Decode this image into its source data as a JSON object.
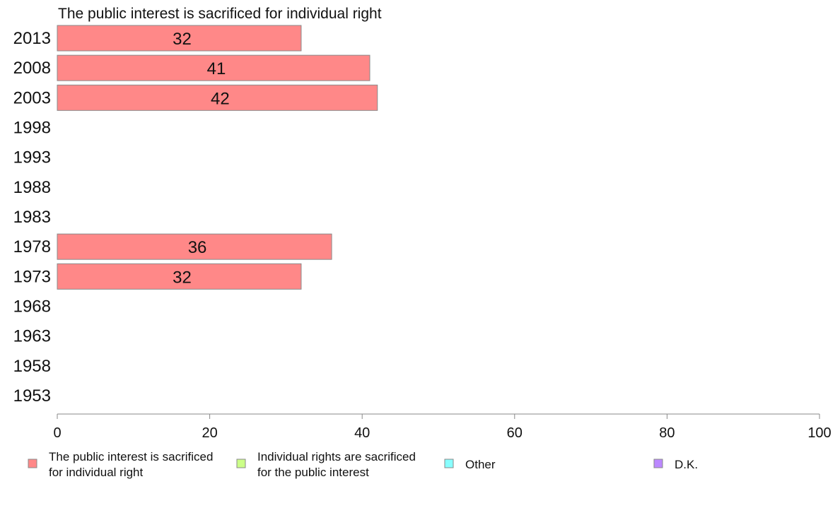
{
  "chart_data": {
    "type": "bar",
    "orientation": "horizontal",
    "title": "The public interest is sacrificed for individual right",
    "categories": [
      "2013",
      "2008",
      "2003",
      "1998",
      "1993",
      "1988",
      "1983",
      "1978",
      "1973",
      "1968",
      "1963",
      "1958",
      "1953"
    ],
    "series": [
      {
        "name": "The public interest is sacrificed for individual right",
        "color": "#ff8888",
        "values": [
          32,
          41,
          42,
          null,
          null,
          null,
          null,
          36,
          32,
          null,
          null,
          null,
          null
        ]
      }
    ],
    "xlim": [
      0,
      100
    ],
    "xticks": [
      0,
      20,
      40,
      60,
      80,
      100
    ],
    "grid": false,
    "legend": {
      "placement": "bottom",
      "items": [
        {
          "lines": [
            "The public interest is sacrificed",
            "for individual right"
          ],
          "color": "#ff8888"
        },
        {
          "lines": [
            "Individual rights are sacrificed",
            "for the public interest"
          ],
          "color": "#ccff88"
        },
        {
          "lines": [
            "Other"
          ],
          "color": "#88ffff"
        },
        {
          "lines": [
            "D.K."
          ],
          "color": "#bb88ff"
        }
      ]
    }
  }
}
